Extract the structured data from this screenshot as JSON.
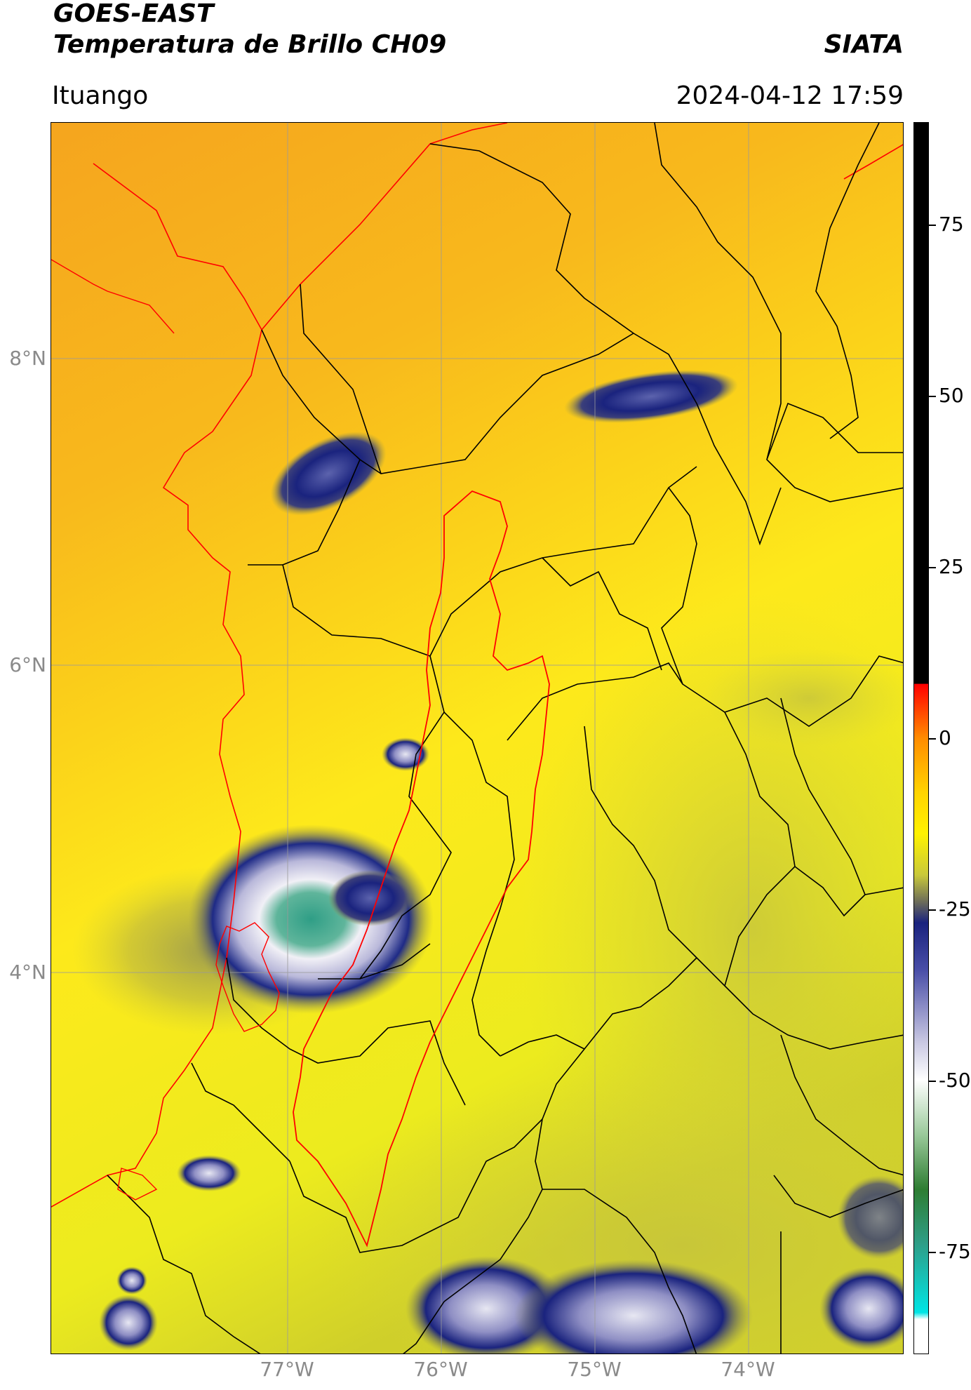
{
  "header": {
    "title_line1": "GOES-EAST",
    "title_line2": "Temperatura de Brillo CH09",
    "credit": "SIATA",
    "location": "Ituango",
    "timestamp": "2024-04-12 17:59"
  },
  "map": {
    "lat_labels": [
      "8°N",
      "6°N",
      "4°N"
    ],
    "lon_labels": [
      "77°W",
      "76°W",
      "75°W",
      "74°W"
    ],
    "colors": {
      "background_warm": "#f7b21f",
      "background_mid": "#fde21a",
      "cloud_dark": "#1a237e",
      "cloud_light": "#ecebf5",
      "cloud_core": "#3aa38a",
      "boundary_black": "#000000",
      "boundary_red": "#ff0000",
      "grid": "#9a9a9a"
    }
  },
  "colorbar": {
    "tick_labels": [
      "75",
      "50",
      "25",
      "0",
      "-25",
      "-50",
      "-75"
    ],
    "tick_values": [
      75,
      50,
      25,
      0,
      -25,
      -50,
      -75
    ],
    "range": [
      -90,
      90
    ]
  }
}
